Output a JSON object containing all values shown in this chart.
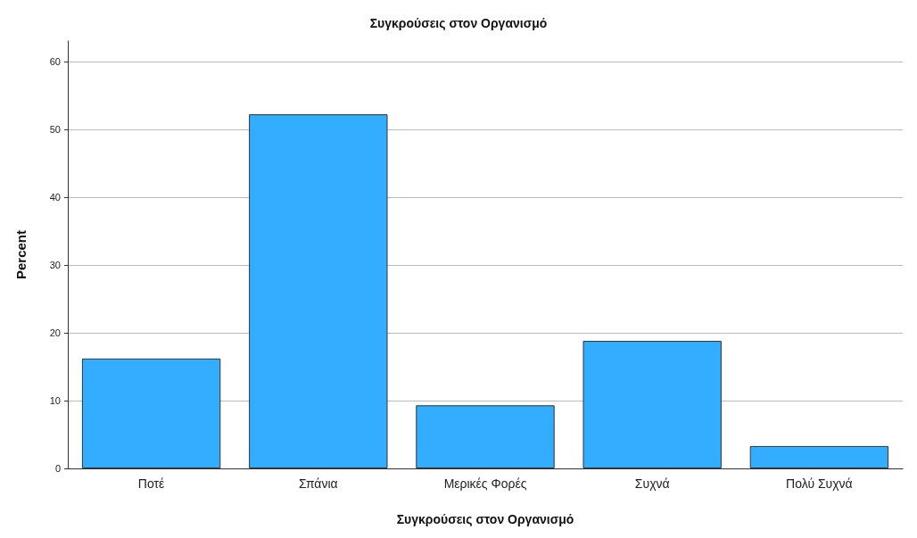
{
  "chart_data": {
    "type": "bar",
    "title": "Συγκρούσεις στον Οργανισμό",
    "xlabel": "Συγκρούσεις στον Οργανισμό",
    "ylabel": "Percent",
    "categories": [
      "Ποτέ",
      "Σπάνια",
      "Μερικές Φορές",
      "Συχνά",
      "Πολύ Συχνά"
    ],
    "values": [
      16.2,
      52.2,
      9.3,
      18.8,
      3.3
    ],
    "color": "#33adff",
    "ylim": [
      0,
      63
    ],
    "yticks": [
      0,
      10,
      20,
      30,
      40,
      50,
      60
    ],
    "grid": "y"
  }
}
